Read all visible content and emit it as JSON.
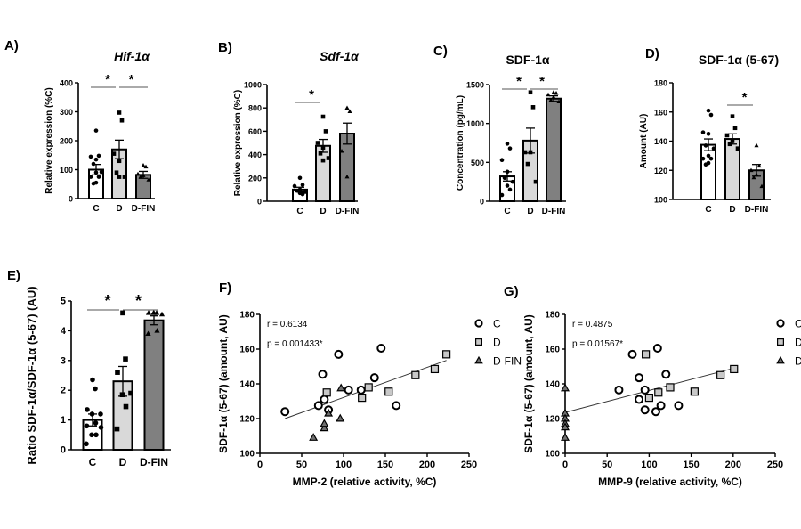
{
  "chart_data": [
    {
      "panel": "A)",
      "title": "Hif-1α",
      "title_italic": true,
      "type": "bar",
      "ylabel": "Relative expression (%C)",
      "ylim": [
        0,
        400
      ],
      "yticks": [
        0,
        100,
        200,
        300,
        400
      ],
      "categories": [
        "C",
        "D",
        "D-FIN"
      ],
      "means": [
        100,
        170,
        82
      ],
      "sem": [
        18,
        32,
        12
      ],
      "points": [
        [
          235,
          148,
          145,
          135,
          120,
          92,
          90,
          75,
          75,
          55,
          52
        ],
        [
          297,
          270,
          155,
          130,
          90,
          75,
          75
        ],
        [
          115,
          110,
          85,
          80,
          75,
          65
        ]
      ],
      "significance": [
        {
          "from": "C",
          "to": "D",
          "label": "*"
        },
        {
          "from": "D",
          "to": "D-FIN",
          "label": "*"
        }
      ]
    },
    {
      "panel": "B)",
      "title": "Sdf-1α",
      "title_italic": true,
      "type": "bar",
      "ylabel": "Relative expression (%C)",
      "ylim": [
        0,
        1000
      ],
      "yticks": [
        0,
        200,
        400,
        600,
        800,
        1000
      ],
      "categories": [
        "C",
        "D",
        "D-FIN"
      ],
      "means": [
        100,
        475,
        580
      ],
      "sem": [
        20,
        55,
        90
      ],
      "points": [
        [
          200,
          140,
          130,
          100,
          90,
          80,
          70,
          60
        ],
        [
          725,
          600,
          500,
          460,
          410,
          370,
          350
        ],
        [
          800,
          770,
          430,
          210
        ]
      ],
      "significance": [
        {
          "from": "C",
          "to": "D",
          "label": "*"
        }
      ]
    },
    {
      "panel": "C)",
      "title": "SDF-1α",
      "title_italic": false,
      "type": "bar",
      "ylabel": "Concentration (pg/mL)",
      "ylim": [
        0,
        1500
      ],
      "yticks": [
        0,
        500,
        1000,
        1500
      ],
      "categories": [
        "C",
        "D",
        "D-FIN"
      ],
      "means": [
        320,
        780,
        1320
      ],
      "sem": [
        60,
        160,
        35
      ],
      "points": [
        [
          740,
          680,
          530,
          380,
          300,
          250,
          200,
          150,
          80
        ],
        [
          1400,
          1210,
          630,
          630,
          480,
          250
        ],
        [
          1400,
          1390,
          1370,
          1340,
          1300,
          1280
        ]
      ],
      "significance": [
        {
          "from": "C",
          "to": "D",
          "label": "*"
        },
        {
          "from": "D",
          "to": "D-FIN",
          "label": "*"
        }
      ]
    },
    {
      "panel": "D)",
      "title": "SDF-1α (5-67)",
      "title_italic": false,
      "type": "bar",
      "ylabel": "Amount (AU)",
      "ylim": [
        100,
        180
      ],
      "yticks": [
        100,
        120,
        140,
        160,
        180
      ],
      "categories": [
        "C",
        "D",
        "D-FIN"
      ],
      "means": [
        137.5,
        141.5,
        120
      ],
      "sem": [
        4,
        3.5,
        4
      ],
      "points": [
        [
          161,
          158,
          146,
          145,
          137,
          135,
          130,
          128,
          128,
          125,
          124
        ],
        [
          157,
          149,
          144,
          140,
          138,
          135
        ],
        [
          137,
          123,
          120,
          117,
          115,
          109
        ]
      ],
      "significance": [
        {
          "from": "D",
          "to": "D-FIN",
          "label": "*"
        }
      ]
    },
    {
      "panel": "E)",
      "title": "",
      "type": "bar",
      "ylabel": "Ratio SDF-1α/SDF-1α (5-67) (AU)",
      "ylim": [
        0,
        5
      ],
      "yticks": [
        0,
        1,
        2,
        3,
        4,
        5
      ],
      "categories": [
        "C",
        "D",
        "D-FIN"
      ],
      "means": [
        1.0,
        2.3,
        4.35
      ],
      "sem": [
        0.2,
        0.5,
        0.15
      ],
      "points": [
        [
          2.35,
          2.05,
          1.35,
          1.2,
          1.2,
          0.9,
          0.8,
          0.75,
          0.5,
          0.5,
          0.2
        ],
        [
          4.6,
          3.05,
          2.6,
          1.9,
          1.85,
          1.45,
          0.7
        ],
        [
          4.6,
          4.6,
          4.6,
          4.55,
          4.6,
          4.0,
          3.9
        ]
      ],
      "significance": [
        {
          "from": "C",
          "to": "D",
          "label": "*"
        },
        {
          "from": "D",
          "to": "D-FIN",
          "label": "*"
        }
      ]
    },
    {
      "panel": "F)",
      "type": "scatter",
      "xlabel": "MMP-2 (relative activity, %C)",
      "ylabel": "SDF-1α (5-67) (amount, AU)",
      "xlim": [
        0,
        250
      ],
      "ylim": [
        100,
        180
      ],
      "xticks": [
        0,
        50,
        100,
        150,
        200,
        250
      ],
      "yticks": [
        100,
        120,
        140,
        160,
        180
      ],
      "annotation": [
        "r = 0.6134",
        "p = 0.001433*"
      ],
      "legend_position": "right",
      "series": [
        {
          "name": "C",
          "points": [
            [
              30,
              124
            ],
            [
              70,
              127.5
            ],
            [
              75,
              145.5
            ],
            [
              77,
              131
            ],
            [
              82,
              125
            ],
            [
              94,
              157
            ],
            [
              106,
              136.5
            ],
            [
              121,
              136.5
            ],
            [
              137,
              143.5
            ],
            [
              145,
              160.5
            ],
            [
              163,
              127.5
            ]
          ]
        },
        {
          "name": "D",
          "points": [
            [
              80,
              135
            ],
            [
              122,
              132
            ],
            [
              130,
              138
            ],
            [
              154,
              135.5
            ],
            [
              186,
              145
            ],
            [
              209,
              148.5
            ],
            [
              223,
              157
            ]
          ]
        },
        {
          "name": "D-FIN",
          "points": [
            [
              64,
              109
            ],
            [
              77,
              114.5
            ],
            [
              77,
              117
            ],
            [
              82,
              123
            ],
            [
              96,
              120
            ],
            [
              97,
              137.5
            ]
          ]
        }
      ],
      "fit_line": [
        [
          30,
          120
        ],
        [
          223,
          153.5
        ]
      ]
    },
    {
      "panel": "G)",
      "type": "scatter",
      "xlabel": "MMP-9 (relative activity, %C)",
      "ylabel": "SDF-1α (5-67) (amount, AU)",
      "xlim": [
        0,
        250
      ],
      "ylim": [
        100,
        180
      ],
      "xticks": [
        0,
        50,
        100,
        150,
        200,
        250
      ],
      "yticks": [
        100,
        120,
        140,
        160,
        180
      ],
      "annotation": [
        "r = 0.4875",
        "p = 0.01567*"
      ],
      "legend_position": "right",
      "series": [
        {
          "name": "C",
          "points": [
            [
              64,
              136.5
            ],
            [
              80,
              157
            ],
            [
              88,
              143.5
            ],
            [
              88,
              131
            ],
            [
              95,
              136.5
            ],
            [
              95,
              125
            ],
            [
              108,
              124
            ],
            [
              110,
              160.5
            ],
            [
              114,
              127.5
            ],
            [
              120,
              145.5
            ],
            [
              135,
              127.5
            ]
          ]
        },
        {
          "name": "D",
          "points": [
            [
              96,
              157
            ],
            [
              100,
              132
            ],
            [
              111,
              135
            ],
            [
              125,
              138
            ],
            [
              154,
              135.5
            ],
            [
              185,
              145
            ],
            [
              201,
              148.5
            ]
          ]
        },
        {
          "name": "D-FIN",
          "points": [
            [
              0,
              137.5
            ],
            [
              0,
              123
            ],
            [
              0,
              120
            ],
            [
              0,
              117
            ],
            [
              0,
              115
            ],
            [
              0,
              109
            ]
          ]
        }
      ],
      "fit_line": [
        [
          0,
          123.5
        ],
        [
          201,
          149
        ]
      ]
    }
  ],
  "colors": {
    "C": "#ffffff",
    "D": "#d9d9d9",
    "D-FIN": "#808080",
    "scatter_D": "#c8c8c8",
    "scatter_D-FIN": "#707070",
    "axis": "#000000"
  }
}
